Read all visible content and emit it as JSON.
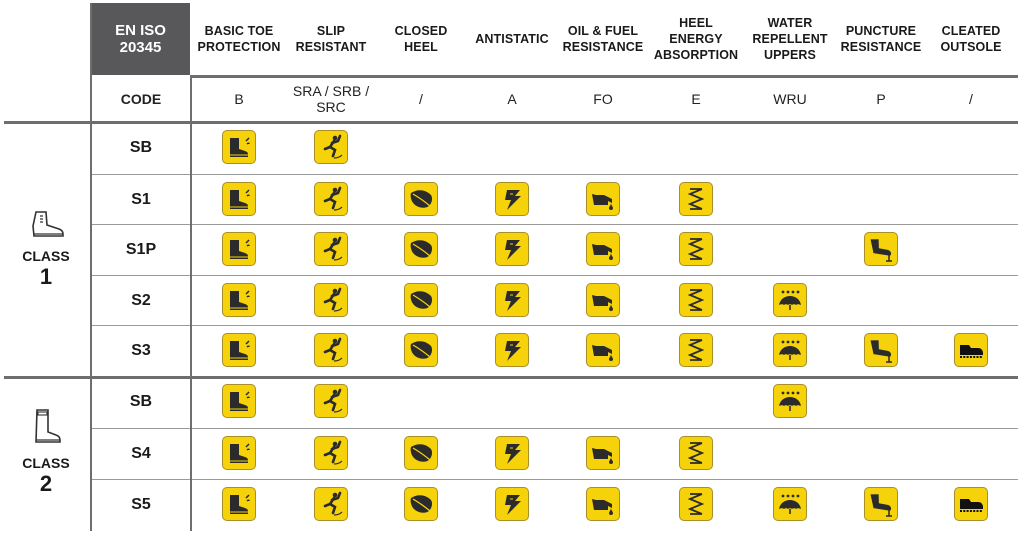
{
  "header": {
    "standard_line1": "EN ISO",
    "standard_line2": "20345",
    "code_label": "CODE"
  },
  "columns": [
    {
      "key": "toe",
      "title": [
        "BASIC TOE",
        "PROTECTION"
      ],
      "code": "B",
      "icon": "toe-cap-boot-icon"
    },
    {
      "key": "slip",
      "title": [
        "SLIP",
        "RESISTANT"
      ],
      "code": "SRA / SRB / SRC",
      "icon": "slipping-person-icon"
    },
    {
      "key": "heel",
      "title": [
        "CLOSED",
        "HEEL"
      ],
      "code": "/",
      "icon": "closed-heel-icon"
    },
    {
      "key": "antistatic",
      "title": [
        "ANTISTATIC"
      ],
      "code": "A",
      "icon": "lightning-bolt-icon"
    },
    {
      "key": "oil",
      "title": [
        "OIL & FUEL",
        "RESISTANCE"
      ],
      "code": "FO",
      "icon": "oil-can-icon"
    },
    {
      "key": "energy",
      "title": [
        "HEEL",
        "ENERGY",
        "ABSORPTION"
      ],
      "code": "E",
      "icon": "spring-icon"
    },
    {
      "key": "water",
      "title": [
        "WATER",
        "REPELLENT",
        "UPPERS"
      ],
      "code": "WRU",
      "icon": "umbrella-rain-icon"
    },
    {
      "key": "puncture",
      "title": [
        "PUNCTURE",
        "RESISTANCE"
      ],
      "code": "P",
      "icon": "puncture-nail-boot-icon"
    },
    {
      "key": "cleated",
      "title": [
        "CLEATED",
        "OUTSOLE"
      ],
      "code": "/",
      "icon": "cleated-shoe-icon"
    }
  ],
  "classes": [
    {
      "word": "CLASS",
      "number": "1",
      "icon": "leather-boot-icon",
      "rows": [
        {
          "code": "SB",
          "features": [
            "toe",
            "slip"
          ]
        },
        {
          "code": "S1",
          "features": [
            "toe",
            "slip",
            "heel",
            "antistatic",
            "oil",
            "energy"
          ]
        },
        {
          "code": "S1P",
          "features": [
            "toe",
            "slip",
            "heel",
            "antistatic",
            "oil",
            "energy",
            "puncture"
          ]
        },
        {
          "code": "S2",
          "features": [
            "toe",
            "slip",
            "heel",
            "antistatic",
            "oil",
            "energy",
            "water"
          ]
        },
        {
          "code": "S3",
          "features": [
            "toe",
            "slip",
            "heel",
            "antistatic",
            "oil",
            "energy",
            "water",
            "puncture",
            "cleated"
          ]
        }
      ]
    },
    {
      "word": "CLASS",
      "number": "2",
      "icon": "rubber-boot-icon",
      "rows": [
        {
          "code": "SB",
          "features": [
            "toe",
            "slip",
            "water"
          ]
        },
        {
          "code": "S4",
          "features": [
            "toe",
            "slip",
            "heel",
            "antistatic",
            "oil",
            "energy"
          ]
        },
        {
          "code": "S5",
          "features": [
            "toe",
            "slip",
            "heel",
            "antistatic",
            "oil",
            "energy",
            "water",
            "puncture",
            "cleated"
          ]
        }
      ]
    }
  ],
  "colors": {
    "icon_bg": "#f5d20a",
    "icon_border": "#a88f2a",
    "header_dark": "#58585a",
    "icon_glyph": "#2b2b2b"
  }
}
